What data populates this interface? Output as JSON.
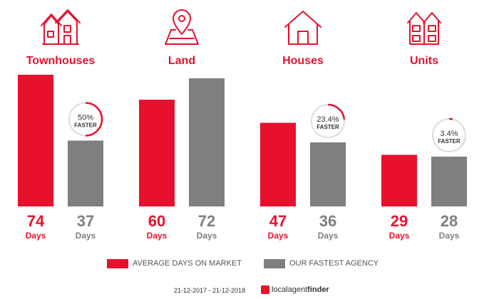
{
  "chart_data": {
    "type": "bar",
    "categories": [
      "Townhouses",
      "Land",
      "Houses",
      "Units"
    ],
    "series": [
      {
        "name": "AVERAGE DAYS ON MARKET",
        "values": [
          74,
          60,
          47,
          29
        ]
      },
      {
        "name": "OUR FASTEST AGENCY",
        "values": [
          37,
          72,
          36,
          28
        ]
      }
    ],
    "unit_label": "Days",
    "faster_badges": [
      {
        "category": "Townhouses",
        "percent_label": "50%",
        "percent": 50,
        "text": "FASTER"
      },
      {
        "category": "Houses",
        "percent_label": "23.4%",
        "percent": 23.4,
        "text": "FASTER"
      },
      {
        "category": "Units",
        "percent_label": "3.4%",
        "percent": 3.4,
        "text": "FASTER"
      }
    ],
    "ylim": [
      0,
      80
    ],
    "colors": {
      "primary": "#e8112d",
      "secondary": "#7f7f7f",
      "ring_bg": "#dddddd"
    },
    "icons": [
      "townhouse-icon",
      "land-pin-icon",
      "house-icon",
      "units-icon"
    ]
  },
  "legend": {
    "items": [
      {
        "label": "AVERAGE DAYS ON MARKET",
        "color": "#e8112d"
      },
      {
        "label": "OUR FASTEST AGENCY",
        "color": "#7f7f7f"
      }
    ]
  },
  "footer": {
    "date_range": "21-12-2017 - 21-12-2018",
    "brand_regular": "localagent",
    "brand_bold": "finder",
    "brand_icon": "localagentfinder-logo-icon"
  }
}
